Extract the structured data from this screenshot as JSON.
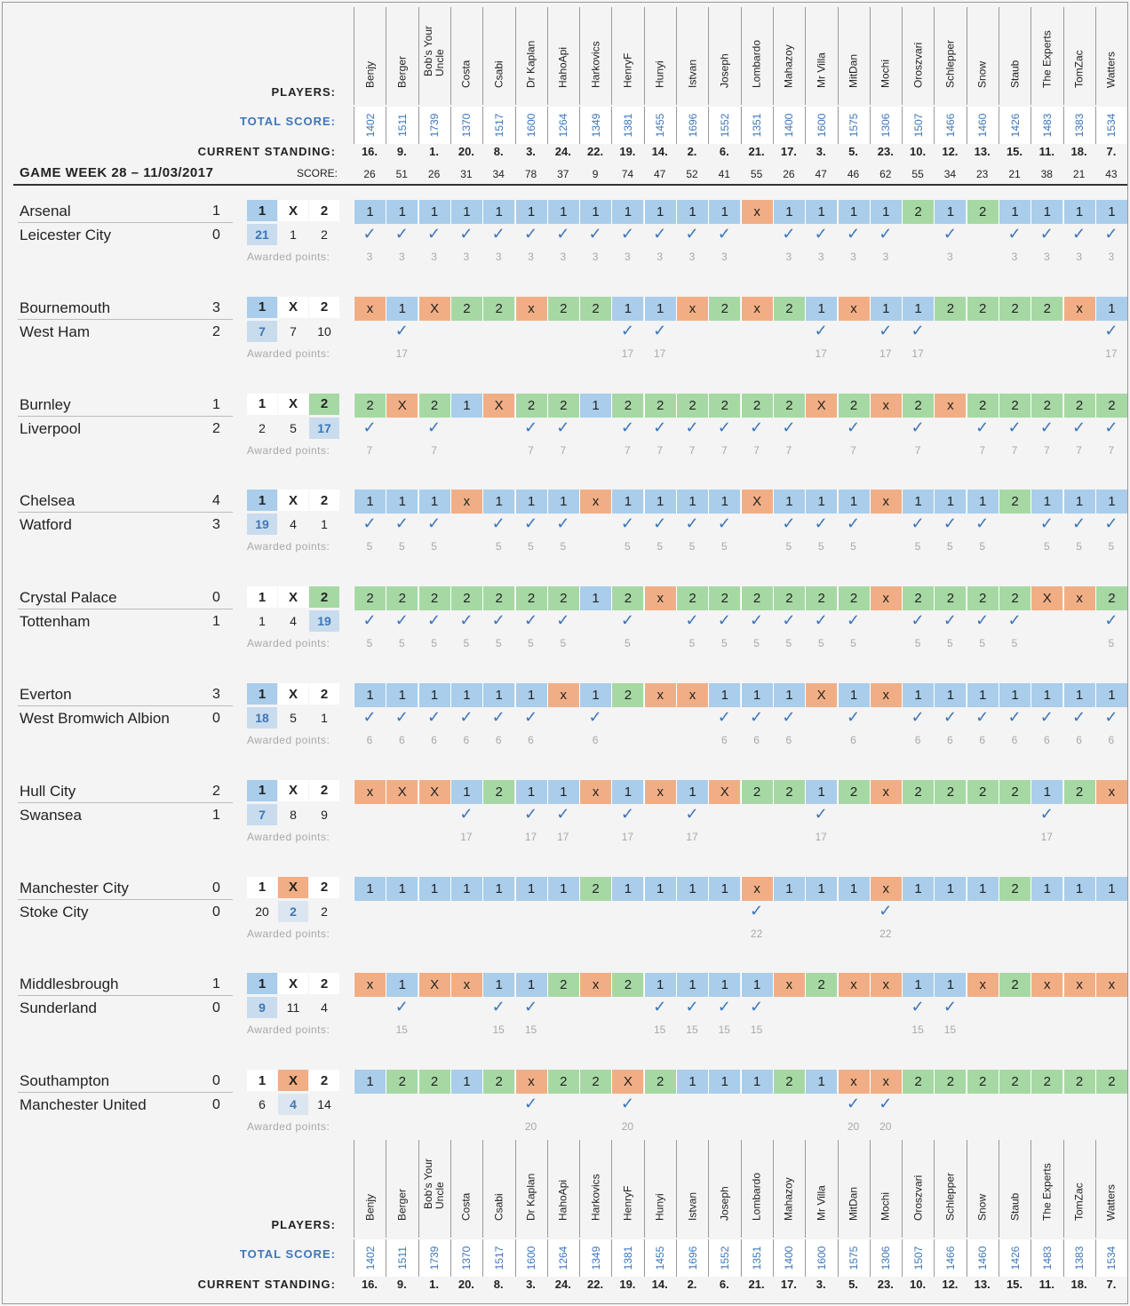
{
  "labels": {
    "players": "PLAYERS:",
    "total_score": "TOTAL SCORE:",
    "current_standing": "CURRENT STANDING:",
    "score": "SCORE:",
    "awarded": "Awarded points:",
    "game_week": "GAME WEEK 28 – 11/03/2017",
    "odds_head": [
      "1",
      "X",
      "2"
    ]
  },
  "players": [
    {
      "name": "Benjy",
      "total": "1402",
      "standing": "16.",
      "score": "26"
    },
    {
      "name": "Berger",
      "total": "1511",
      "standing": "9.",
      "score": "51"
    },
    {
      "name": "Bob's Your Uncle",
      "total": "1739",
      "standing": "1.",
      "score": "26"
    },
    {
      "name": "Costa",
      "total": "1370",
      "standing": "20.",
      "score": "31"
    },
    {
      "name": "Csabi",
      "total": "1517",
      "standing": "8.",
      "score": "34"
    },
    {
      "name": "Dr Kaplan",
      "total": "1600",
      "standing": "3.",
      "score": "78"
    },
    {
      "name": "HahoApi",
      "total": "1264",
      "standing": "24.",
      "score": "37"
    },
    {
      "name": "Harkovics",
      "total": "1349",
      "standing": "22.",
      "score": "9"
    },
    {
      "name": "HenryF",
      "total": "1381",
      "standing": "19.",
      "score": "74"
    },
    {
      "name": "Hunyi",
      "total": "1455",
      "standing": "14.",
      "score": "47"
    },
    {
      "name": "Istvan",
      "total": "1696",
      "standing": "2.",
      "score": "52"
    },
    {
      "name": "Joseph",
      "total": "1552",
      "standing": "6.",
      "score": "41"
    },
    {
      "name": "Lombardo",
      "total": "1351",
      "standing": "21.",
      "score": "55"
    },
    {
      "name": "Mahazoy",
      "total": "1400",
      "standing": "17.",
      "score": "26"
    },
    {
      "name": "Mr Villa",
      "total": "1600",
      "standing": "3.",
      "score": "47"
    },
    {
      "name": "MitDan",
      "total": "1575",
      "standing": "5.",
      "score": "46"
    },
    {
      "name": "Mochi",
      "total": "1306",
      "standing": "23.",
      "score": "62"
    },
    {
      "name": "Oroszvari",
      "total": "1507",
      "standing": "10.",
      "score": "55"
    },
    {
      "name": "Schlepper",
      "total": "1466",
      "standing": "12.",
      "score": "34"
    },
    {
      "name": "Snow",
      "total": "1460",
      "standing": "13.",
      "score": "23"
    },
    {
      "name": "Staub",
      "total": "1426",
      "standing": "15.",
      "score": "21"
    },
    {
      "name": "The Experts",
      "total": "1483",
      "standing": "11.",
      "score": "38"
    },
    {
      "name": "TomZac",
      "total": "1383",
      "standing": "18.",
      "score": "21"
    },
    {
      "name": "Watters",
      "total": "1534",
      "standing": "7.",
      "score": "43"
    }
  ],
  "matches": [
    {
      "home": "Arsenal",
      "away": "Leicester City",
      "hg": "1",
      "ag": "0",
      "result": "1",
      "counts": [
        "21",
        "1",
        "2"
      ],
      "points": "3",
      "preds": [
        "1",
        "1",
        "1",
        "1",
        "1",
        "1",
        "1",
        "1",
        "1",
        "1",
        "1",
        "1",
        "x",
        "1",
        "1",
        "1",
        "1",
        "2",
        "1",
        "2",
        "1",
        "1",
        "1",
        "1"
      ]
    },
    {
      "home": "Bournemouth",
      "away": "West Ham",
      "hg": "3",
      "ag": "2",
      "result": "1",
      "counts": [
        "7",
        "7",
        "10"
      ],
      "points": "17",
      "preds": [
        "x",
        "1",
        "X",
        "2",
        "2",
        "x",
        "2",
        "2",
        "1",
        "1",
        "x",
        "2",
        "x",
        "2",
        "1",
        "x",
        "1",
        "1",
        "2",
        "2",
        "2",
        "2",
        "x",
        "1"
      ]
    },
    {
      "home": "Burnley",
      "away": "Liverpool",
      "hg": "1",
      "ag": "2",
      "result": "2",
      "counts": [
        "2",
        "5",
        "17"
      ],
      "points": "7",
      "preds": [
        "2",
        "X",
        "2",
        "1",
        "X",
        "2",
        "2",
        "1",
        "2",
        "2",
        "2",
        "2",
        "2",
        "2",
        "X",
        "2",
        "x",
        "2",
        "x",
        "2",
        "2",
        "2",
        "2",
        "2"
      ]
    },
    {
      "home": "Chelsea",
      "away": "Watford",
      "hg": "4",
      "ag": "3",
      "result": "1",
      "counts": [
        "19",
        "4",
        "1"
      ],
      "points": "5",
      "preds": [
        "1",
        "1",
        "1",
        "x",
        "1",
        "1",
        "1",
        "x",
        "1",
        "1",
        "1",
        "1",
        "X",
        "1",
        "1",
        "1",
        "x",
        "1",
        "1",
        "1",
        "2",
        "1",
        "1",
        "1"
      ]
    },
    {
      "home": "Crystal Palace",
      "away": "Tottenham",
      "hg": "0",
      "ag": "1",
      "result": "2",
      "counts": [
        "1",
        "4",
        "19"
      ],
      "points": "5",
      "preds": [
        "2",
        "2",
        "2",
        "2",
        "2",
        "2",
        "2",
        "1",
        "2",
        "x",
        "2",
        "2",
        "2",
        "2",
        "2",
        "2",
        "x",
        "2",
        "2",
        "2",
        "2",
        "X",
        "x",
        "2"
      ]
    },
    {
      "home": "Everton",
      "away": "West Bromwich Albion",
      "hg": "3",
      "ag": "0",
      "result": "1",
      "counts": [
        "18",
        "5",
        "1"
      ],
      "points": "6",
      "preds": [
        "1",
        "1",
        "1",
        "1",
        "1",
        "1",
        "x",
        "1",
        "2",
        "x",
        "x",
        "1",
        "1",
        "1",
        "X",
        "1",
        "x",
        "1",
        "1",
        "1",
        "1",
        "1",
        "1",
        "1"
      ]
    },
    {
      "home": "Hull City",
      "away": "Swansea",
      "hg": "2",
      "ag": "1",
      "result": "1",
      "counts": [
        "7",
        "8",
        "9"
      ],
      "points": "17",
      "preds": [
        "x",
        "X",
        "X",
        "1",
        "2",
        "1",
        "1",
        "x",
        "1",
        "x",
        "1",
        "X",
        "2",
        "2",
        "1",
        "2",
        "x",
        "2",
        "2",
        "2",
        "2",
        "1",
        "2",
        "x"
      ]
    },
    {
      "home": "Manchester City",
      "away": "Stoke City",
      "hg": "0",
      "ag": "0",
      "result": "X",
      "counts": [
        "20",
        "2",
        "2"
      ],
      "points": "22",
      "preds": [
        "1",
        "1",
        "1",
        "1",
        "1",
        "1",
        "1",
        "2",
        "1",
        "1",
        "1",
        "1",
        "x",
        "1",
        "1",
        "1",
        "x",
        "1",
        "1",
        "1",
        "2",
        "1",
        "1",
        "1"
      ]
    },
    {
      "home": "Middlesbrough",
      "away": "Sunderland",
      "hg": "1",
      "ag": "0",
      "result": "1",
      "counts": [
        "9",
        "11",
        "4"
      ],
      "points": "15",
      "preds": [
        "x",
        "1",
        "X",
        "x",
        "1",
        "1",
        "2",
        "x",
        "2",
        "1",
        "1",
        "1",
        "1",
        "x",
        "2",
        "x",
        "x",
        "1",
        "1",
        "x",
        "2",
        "x",
        "x",
        "x"
      ]
    },
    {
      "home": "Southampton",
      "away": "Manchester United",
      "hg": "0",
      "ag": "0",
      "result": "X",
      "counts": [
        "6",
        "4",
        "14"
      ],
      "points": "20",
      "preds": [
        "1",
        "2",
        "2",
        "1",
        "2",
        "x",
        "2",
        "2",
        "X",
        "2",
        "1",
        "1",
        "1",
        "2",
        "1",
        "x",
        "x",
        "2",
        "2",
        "2",
        "2",
        "2",
        "2",
        "2"
      ]
    }
  ]
}
